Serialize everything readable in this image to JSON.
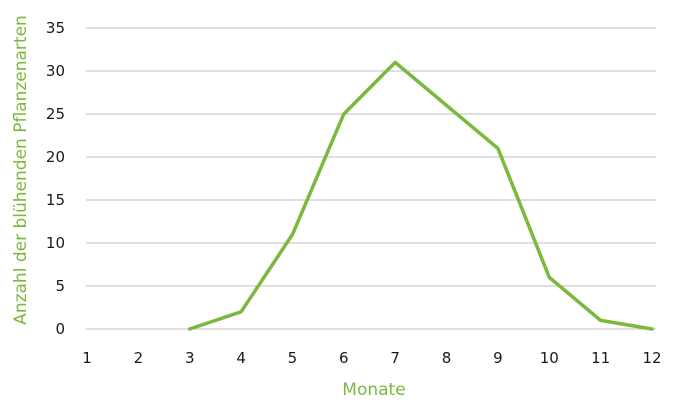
{
  "chart_data": {
    "type": "line",
    "x": [
      1,
      2,
      3,
      4,
      5,
      6,
      7,
      8,
      9,
      10,
      11,
      12
    ],
    "series": [
      {
        "values": [
          null,
          null,
          0,
          2,
          11,
          25,
          31,
          26,
          21,
          6,
          1,
          0
        ]
      }
    ],
    "xlabel": "Monate",
    "ylabel": "Anzahl der blühenden Pflanzenarten",
    "ylim": [
      0,
      35
    ],
    "yticks": [
      0,
      5,
      10,
      15,
      20,
      25,
      30,
      35
    ],
    "xticks": [
      "1",
      "2",
      "3",
      "4",
      "5",
      "6",
      "7",
      "8",
      "9",
      "10",
      "11",
      "12"
    ],
    "grid": "horizontal",
    "legend": "none",
    "colors": {
      "line": "#7bb83e",
      "axis_title": "#7bb83e",
      "grid": "#bfbfbf"
    }
  }
}
